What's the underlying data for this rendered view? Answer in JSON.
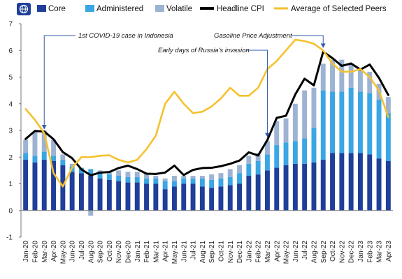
{
  "colors": {
    "core": "#1f3f99",
    "administered": "#3aa6e3",
    "volatile": "#9db3d3",
    "headline": "#000000",
    "peers": "#f5c12e",
    "annotation_arrow": "#2e5aa8"
  },
  "icon": "globe-icon",
  "chart_data": {
    "type": "bar",
    "stacked": true,
    "categories": [
      "Jan-20",
      "Feb-20",
      "Mar-20",
      "Apr-20",
      "May-20",
      "Jun-20",
      "Jul-20",
      "Aug-20",
      "Sep-20",
      "Oct-20",
      "Nov-20",
      "Dec-20",
      "Jan-21",
      "Feb-21",
      "Mar-21",
      "Apr-21",
      "May-21",
      "Jun-21",
      "Jul-21",
      "Aug-21",
      "Sep-21",
      "Oct-21",
      "Nov-21",
      "Dec-21",
      "Jan-22",
      "Feb-22",
      "Mar-22",
      "Apr-22",
      "May-22",
      "Jun-22",
      "Jul-22",
      "Aug-22",
      "Sep-22",
      "Oct-22",
      "Nov-22",
      "Dec-22",
      "Jan-23",
      "Feb-23",
      "Mar-23",
      "Apr-23"
    ],
    "tick_labels": [
      "Jan-20",
      "Feb-20",
      "Mar-20",
      "Apr-20",
      "May-20",
      "Jun-20",
      "Jul-20",
      "Aug-20",
      "Sep-20",
      "Oct-20",
      "Nov-20",
      "Dec-20",
      "Jan-21",
      "Feb-21",
      "Mar-21",
      "Apr-21",
      "May-21",
      "Jun-21",
      "Jul-21",
      "Aug-21",
      "Sep-21",
      "Oct-21",
      "Nov-21",
      "Dec-21",
      "Jan-22",
      "Feb-22",
      "Mar-22",
      "Apr-22",
      "May-22",
      "Jun-22",
      "Jul-22",
      "Aug-22",
      "Sep-22",
      "Oct-22",
      "Nov-22",
      "Dec-22",
      "Jan-23",
      "Feb-23",
      "Mar-23",
      "Apr-23"
    ],
    "ylim": [
      -1,
      7
    ],
    "yticks": [
      -1,
      0,
      1,
      2,
      3,
      4,
      5,
      6,
      7
    ],
    "grid": false,
    "legend_position": "top",
    "series": [
      {
        "name": "Core",
        "kind": "bar",
        "color_key": "core",
        "values": [
          1.9,
          1.8,
          1.9,
          1.85,
          1.7,
          1.45,
          1.4,
          1.3,
          1.2,
          1.15,
          1.1,
          1.05,
          1.05,
          1.0,
          1.0,
          0.8,
          0.9,
          1.0,
          1.0,
          0.9,
          0.85,
          0.9,
          0.95,
          1.0,
          1.3,
          1.35,
          1.5,
          1.6,
          1.7,
          1.75,
          1.75,
          1.8,
          1.9,
          2.15,
          2.15,
          2.15,
          2.15,
          2.1,
          1.95,
          1.85
        ]
      },
      {
        "name": "Administered",
        "kind": "bar",
        "color_key": "administered",
        "values": [
          0.25,
          0.25,
          0.3,
          0.2,
          0.2,
          0.2,
          0.2,
          0.25,
          0.2,
          0.2,
          0.2,
          0.2,
          0.2,
          0.2,
          0.2,
          0.3,
          0.2,
          0.2,
          0.2,
          0.3,
          0.3,
          0.3,
          0.3,
          0.4,
          0.45,
          0.5,
          0.6,
          0.85,
          0.85,
          0.85,
          0.95,
          1.3,
          2.6,
          2.3,
          2.3,
          2.45,
          2.3,
          2.3,
          2.2,
          1.8
        ]
      },
      {
        "name": "Volatile",
        "kind": "bar",
        "color_key": "volatile",
        "values": [
          0.5,
          0.9,
          0.8,
          0.6,
          0.2,
          0.1,
          0.0,
          -0.2,
          0.1,
          0.1,
          0.2,
          0.2,
          0.2,
          0.2,
          0.1,
          0.1,
          0.2,
          0.1,
          0.1,
          0.1,
          0.2,
          0.2,
          0.3,
          0.3,
          0.3,
          0.3,
          0.5,
          0.9,
          0.9,
          1.4,
          1.8,
          1.5,
          1.0,
          1.2,
          1.2,
          0.9,
          0.9,
          0.8,
          0.6,
          0.6
        ]
      },
      {
        "name": "Headline CPI",
        "kind": "line",
        "color_key": "headline",
        "values": [
          2.68,
          2.98,
          2.96,
          2.67,
          2.19,
          1.96,
          1.54,
          1.32,
          1.42,
          1.44,
          1.59,
          1.68,
          1.55,
          1.38,
          1.37,
          1.42,
          1.68,
          1.33,
          1.52,
          1.59,
          1.6,
          1.66,
          1.75,
          1.87,
          2.18,
          2.06,
          2.64,
          3.47,
          3.55,
          4.35,
          4.94,
          4.69,
          5.95,
          5.71,
          5.42,
          5.51,
          5.28,
          5.47,
          4.97,
          4.33
        ]
      },
      {
        "name": "Average of Selected Peers",
        "kind": "line",
        "color_key": "peers",
        "values": [
          3.8,
          3.4,
          2.9,
          1.4,
          0.9,
          1.6,
          2.0,
          2.0,
          2.05,
          2.07,
          1.9,
          1.8,
          1.9,
          2.3,
          2.8,
          4.0,
          4.45,
          4.0,
          3.65,
          3.7,
          3.9,
          4.2,
          4.6,
          4.3,
          4.3,
          4.6,
          5.3,
          5.6,
          6.0,
          6.4,
          6.35,
          6.25,
          6.0,
          5.5,
          5.2,
          5.2,
          5.3,
          5.0,
          4.5,
          3.5
        ]
      }
    ],
    "annotations": [
      {
        "text": "1st COVID-19 case in Indonesia",
        "x": "Mar-20"
      },
      {
        "text": "Gasoline Price Adjustment",
        "x": "Sep-22"
      },
      {
        "text": "Early days of Russia's invasion",
        "x": "Mar-22"
      }
    ]
  }
}
